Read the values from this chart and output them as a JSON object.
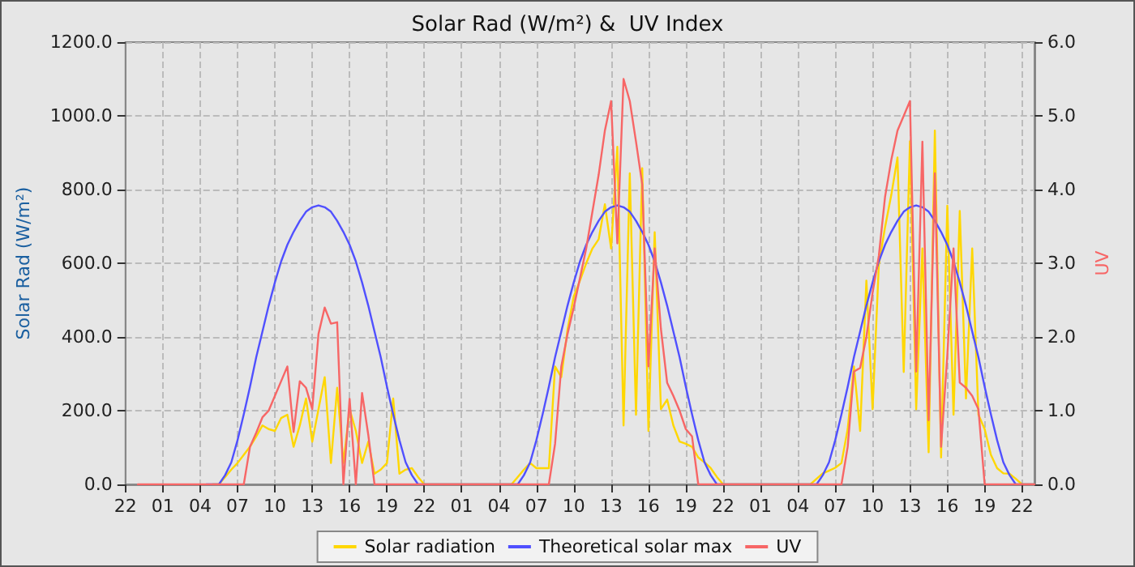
{
  "chart_data": {
    "type": "line",
    "title": "Solar Rad (W/m²) &  UV Index",
    "ylabel": "Solar Rad (W/m²)",
    "y2label": "UV",
    "categories": [
      "22",
      null,
      null,
      null,
      null,
      null,
      "01",
      null,
      null,
      null,
      null,
      null,
      "04",
      null,
      null,
      null,
      null,
      null,
      "07",
      null,
      null,
      null,
      null,
      null,
      "10",
      null,
      null,
      null,
      null,
      null,
      "13",
      null,
      null,
      null,
      null,
      null,
      "16",
      null,
      null,
      null,
      null,
      null,
      "19",
      null,
      null,
      null,
      null,
      null,
      "22",
      null,
      null,
      null,
      null,
      null,
      "01",
      null,
      null,
      null,
      null,
      null,
      "04",
      null,
      null,
      null,
      null,
      null,
      "07",
      null,
      null,
      null,
      null,
      null,
      "10",
      null,
      null,
      null,
      null,
      null,
      "13",
      null,
      null,
      null,
      null,
      null,
      "16",
      null,
      null,
      null,
      null,
      null,
      "19",
      null,
      null,
      null,
      null,
      null,
      "22",
      null,
      null,
      null,
      null,
      null,
      "01",
      null,
      null,
      null,
      null,
      null,
      "04",
      null,
      null,
      null,
      null,
      null,
      "07",
      null,
      null,
      null,
      null,
      null,
      "10",
      null,
      null,
      null,
      null,
      null,
      "13",
      null,
      null,
      null,
      null,
      null,
      "16",
      null,
      null,
      null,
      null,
      null,
      "19",
      null,
      null,
      null,
      null,
      null,
      "22",
      null,
      null
    ],
    "ylim": [
      0,
      1200
    ],
    "yticks": [
      {
        "value": 0,
        "label": "0.0"
      },
      {
        "value": 200,
        "label": "200.0"
      },
      {
        "value": 400,
        "label": "400.0"
      },
      {
        "value": 600,
        "label": "600.0"
      },
      {
        "value": 800,
        "label": "800.0"
      },
      {
        "value": 1000,
        "label": "1000.0"
      },
      {
        "value": 1200,
        "label": "1200.0"
      }
    ],
    "y2lim": [
      0,
      6
    ],
    "y2ticks": [
      {
        "value": 0,
        "label": "0.0"
      },
      {
        "value": 1,
        "label": "1.0"
      },
      {
        "value": 2,
        "label": "2.0"
      },
      {
        "value": 3,
        "label": "3.0"
      },
      {
        "value": 4,
        "label": "4.0"
      },
      {
        "value": 5,
        "label": "5.0"
      },
      {
        "value": 6,
        "label": "6.0"
      }
    ],
    "grid": true,
    "legend": "bottom",
    "marker": "none",
    "line_style": "solid",
    "series": [
      {
        "name": "Solar radiation",
        "color": "#ffd700",
        "values": [
          null,
          null,
          null,
          null,
          null,
          null,
          null,
          null,
          null,
          null,
          null,
          null,
          null,
          null,
          0,
          0,
          20,
          40,
          58,
          80,
          102,
          130,
          160,
          150,
          145,
          180,
          189,
          102,
          160,
          233,
          116,
          204,
          291,
          58,
          262,
          58,
          204,
          145,
          58,
          116,
          29,
          40,
          58,
          233,
          29,
          40,
          44,
          20,
          0,
          0,
          0,
          0,
          0,
          0,
          0,
          0,
          0,
          0,
          0,
          0,
          0,
          0,
          0,
          20,
          40,
          58,
          44,
          44,
          44,
          320,
          291,
          420,
          510,
          553,
          600,
          640,
          665,
          760,
          640,
          916,
          160,
          844,
          189,
          858,
          145,
          684,
          204,
          230,
          160,
          116,
          110,
          102,
          73,
          60,
          44,
          20,
          0,
          0,
          0,
          0,
          0,
          0,
          0,
          0,
          0,
          0,
          0,
          0,
          0,
          0,
          0,
          15,
          30,
          37,
          45,
          58,
          150,
          320,
          145,
          553,
          204,
          596,
          698,
          785,
          887,
          305,
          931,
          204,
          640,
          87,
          960,
          73,
          756,
          189,
          742,
          233,
          640,
          189,
          150,
          80,
          44,
          30,
          29,
          15,
          0,
          0,
          0
        ]
      },
      {
        "name": "Theoretical solar max",
        "color": "#5050ff",
        "values": [
          null,
          null,
          null,
          null,
          null,
          null,
          null,
          null,
          null,
          null,
          null,
          null,
          null,
          0,
          0,
          0,
          25,
          60,
          120,
          190,
          265,
          345,
          415,
          485,
          548,
          605,
          650,
          685,
          715,
          740,
          752,
          757,
          752,
          740,
          715,
          685,
          650,
          605,
          548,
          485,
          415,
          345,
          265,
          190,
          120,
          60,
          25,
          0,
          0,
          0,
          0,
          0,
          0,
          0,
          0,
          0,
          0,
          0,
          0,
          0,
          0,
          0,
          0,
          0,
          25,
          60,
          120,
          190,
          265,
          345,
          415,
          485,
          548,
          605,
          650,
          685,
          715,
          740,
          752,
          757,
          752,
          740,
          715,
          685,
          650,
          605,
          548,
          485,
          415,
          345,
          265,
          190,
          120,
          60,
          25,
          0,
          0,
          0,
          0,
          0,
          0,
          0,
          0,
          0,
          0,
          0,
          0,
          0,
          0,
          0,
          0,
          0,
          25,
          60,
          120,
          190,
          265,
          345,
          415,
          485,
          548,
          605,
          650,
          685,
          715,
          740,
          752,
          757,
          752,
          740,
          715,
          685,
          650,
          605,
          548,
          485,
          415,
          345,
          265,
          190,
          120,
          60,
          25,
          0,
          0,
          0,
          0
        ]
      },
      {
        "name": "UV",
        "color": "#f76666",
        "axis": "y2",
        "values": [
          null,
          null,
          0,
          0,
          0,
          0,
          0,
          0,
          0,
          0,
          0,
          0,
          0,
          0,
          0,
          0,
          0,
          0,
          0,
          0,
          0.51,
          0.7,
          0.91,
          1.0,
          1.2,
          1.4,
          1.6,
          0.71,
          1.4,
          1.31,
          1.02,
          2.04,
          2.4,
          2.18,
          2.2,
          0,
          1.16,
          0,
          1.24,
          0.67,
          0,
          0,
          0,
          0,
          0,
          0,
          0,
          0,
          0,
          0,
          0,
          0,
          0,
          0,
          0,
          0,
          0,
          0,
          0,
          0,
          0,
          0,
          0,
          0,
          0,
          0,
          0,
          0,
          0,
          0.55,
          1.6,
          2.04,
          2.4,
          2.8,
          3.2,
          3.7,
          4.2,
          4.8,
          5.2,
          3.27,
          5.5,
          5.2,
          4.65,
          4.07,
          1.6,
          3.2,
          2.11,
          1.38,
          1.2,
          1.0,
          0.75,
          0.65,
          0,
          0,
          0,
          0,
          0,
          0,
          0,
          0,
          0,
          0,
          0,
          0,
          0,
          0,
          0,
          0,
          0,
          0,
          0,
          0,
          0,
          0,
          0,
          0,
          0.51,
          1.53,
          1.58,
          2.0,
          2.6,
          3.1,
          3.9,
          4.4,
          4.8,
          5.0,
          5.2,
          1.53,
          4.65,
          0.87,
          4.22,
          0.51,
          1.75,
          3.2,
          1.38,
          1.31,
          1.2,
          1.02,
          0,
          0,
          0,
          0,
          0,
          0,
          0,
          0,
          0
        ]
      }
    ]
  }
}
